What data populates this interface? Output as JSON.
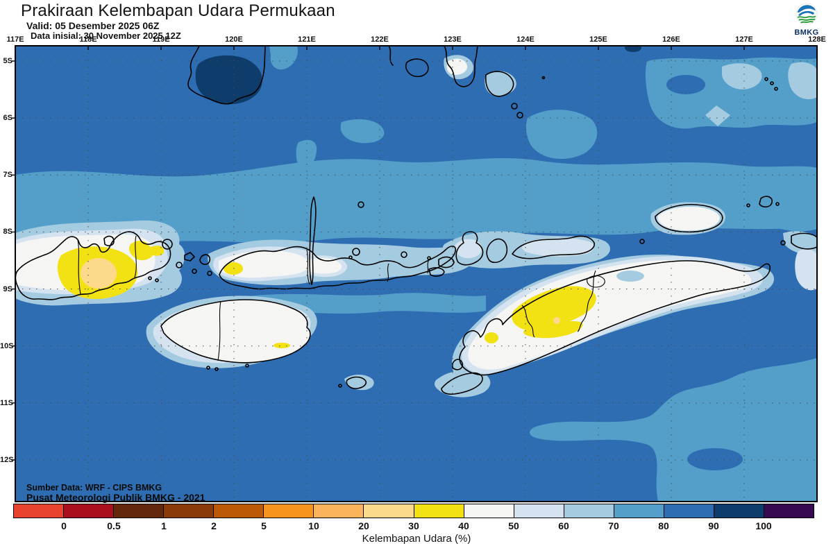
{
  "header": {
    "title": "Prakiraan Kelembapan Udara Permukaan",
    "valid": "Valid: 05 Desember 2025 06Z",
    "data_inisial": "Data inisial: 30 November 2025 12Z",
    "logo_text": "BMKG"
  },
  "map": {
    "lon_labels": [
      "117E",
      "118E",
      "119E",
      "120E",
      "121E",
      "122E",
      "123E",
      "124E",
      "125E",
      "126E",
      "127E",
      "128E"
    ],
    "lat_labels": [
      "5S",
      "6S",
      "7S",
      "8S",
      "9S",
      "10S",
      "11S",
      "12S"
    ],
    "source_line": "Sumber Data: WRF - CIPS BMKG",
    "credit_line": "Pusat Meteorologi Publik BMKG - 2021"
  },
  "colorbar": {
    "caption": "Kelembapan Udara (%)",
    "tick_labels": [
      "0",
      "0.5",
      "1",
      "2",
      "5",
      "10",
      "20",
      "30",
      "40",
      "50",
      "60",
      "70",
      "80",
      "90",
      "100"
    ],
    "cell_colors": [
      "#e8432e",
      "#a9101d",
      "#63270c",
      "#8a3a06",
      "#bc5907",
      "#f7941e",
      "#fbb45c",
      "#fdd98b",
      "#f2e113",
      "#f5f6f4",
      "#d4e3ef",
      "#a5cbe1",
      "#539fc9",
      "#2e6db2",
      "#0e3d6b",
      "#360a50"
    ]
  },
  "colors": {
    "coastline": "#000000",
    "grid": "#4a4a4a",
    "ocean_dominant": "#2e6db2",
    "logo_blue": "#1b74b8",
    "logo_green": "#2f9e41",
    "logo_text_color": "#0d2f66",
    "text": "#141414"
  },
  "chart_data": {
    "type": "heatmap",
    "title": "Prakiraan Kelembapan Udara Permukaan",
    "valid_time": "05 Desember 2025 06Z",
    "init_time": "30 November 2025 12Z",
    "colorbar_label": "Kelembapan Udara (%)",
    "colorbar_tick_values": [
      0,
      0.5,
      1,
      2,
      5,
      10,
      20,
      30,
      40,
      50,
      60,
      70,
      80,
      90,
      100
    ],
    "x_axis": {
      "type": "longitude",
      "ticks": [
        "117E",
        "118E",
        "119E",
        "120E",
        "121E",
        "122E",
        "123E",
        "124E",
        "125E",
        "126E",
        "127E",
        "128E"
      ]
    },
    "y_axis": {
      "type": "latitude",
      "ticks": [
        "5S",
        "6S",
        "7S",
        "8S",
        "9S",
        "10S",
        "11S",
        "12S"
      ]
    },
    "summary": "Surface relative humidity over Nusa Tenggara: sea mostly 80-90% with 70-80% bands and a 90-100% patch near South Sulawesi; islands (Sumbawa, Flores, Sumba, Timor, Wetar) 40-60% with 30-40% yellow cores on west Sumbawa, west Timor and Sumba, and 20-30% centers on west Sumbawa"
  }
}
